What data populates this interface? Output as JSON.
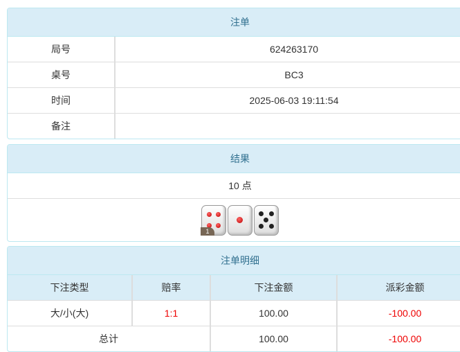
{
  "order": {
    "title": "注单",
    "rows": [
      {
        "label": "局号",
        "value": "624263170"
      },
      {
        "label": "桌号",
        "value": "BC3"
      },
      {
        "label": "时间",
        "value": "2025-06-03 19:11:54"
      },
      {
        "label": "备注",
        "value": ""
      }
    ]
  },
  "result": {
    "title": "结果",
    "points": "10 点",
    "dice": [
      4,
      1,
      5
    ],
    "badge": "1"
  },
  "detail": {
    "title": "注单明细",
    "headers": [
      "下注类型",
      "赔率",
      "下注金额",
      "派彩金额"
    ],
    "rows": [
      {
        "type": "大/小(大)",
        "odds": "1:1",
        "amount": "100.00",
        "payout": "-100.00"
      }
    ],
    "total": {
      "label": "总计",
      "amount": "100.00",
      "payout": "-100.00"
    }
  },
  "colors": {
    "header_bg": "#d9edf7",
    "header_text": "#31708f",
    "negative": "#ee0000"
  }
}
